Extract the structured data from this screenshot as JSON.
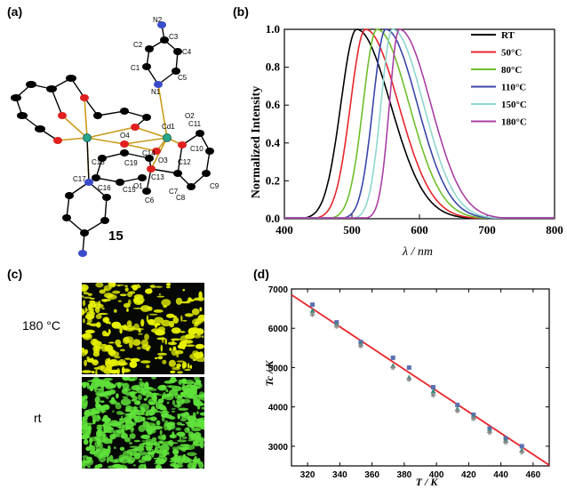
{
  "panels": {
    "a": "(a)",
    "b": "(b)",
    "c": "(c)",
    "d": "(d)"
  },
  "structure": {
    "compound_number": "15",
    "atom_labels": [
      "N2",
      "C3",
      "C2",
      "C4",
      "C1",
      "N1",
      "C5",
      "C11",
      "O2",
      "Cd1",
      "O4",
      "C10",
      "C14",
      "O3",
      "C18",
      "C19",
      "C12",
      "C13",
      "C17",
      "C16",
      "C15",
      "C9",
      "C7",
      "O1",
      "C6",
      "C8"
    ]
  },
  "micrographs": {
    "top_label": "180 °C",
    "bottom_label": "rt",
    "top_color": "#e8f200",
    "bottom_color": "#5fe23a"
  },
  "chart_data": [
    {
      "type": "line",
      "panel": "b",
      "xlabel": "λ / nm",
      "ylabel": "Normalized Intensity",
      "xlim": [
        400,
        800
      ],
      "ylim": [
        0.0,
        1.0
      ],
      "xticks": [
        "400",
        "500",
        "600",
        "700",
        "800"
      ],
      "yticks": [
        "0.0",
        "0.2",
        "0.4",
        "0.6",
        "0.8",
        "1.0"
      ],
      "legend_position": "top-right",
      "series": [
        {
          "name": "RT",
          "color": "#000000",
          "peak": 507,
          "fwhm_left": 55,
          "fwhm_right": 118
        },
        {
          "name": "50°C",
          "color": "#e8252a",
          "peak": 520,
          "fwhm_left": 52,
          "fwhm_right": 115
        },
        {
          "name": "80°C",
          "color": "#6fbf2a",
          "peak": 537,
          "fwhm_left": 48,
          "fwhm_right": 112
        },
        {
          "name": "110°C",
          "color": "#3b45a8",
          "peak": 550,
          "fwhm_left": 44,
          "fwhm_right": 110
        },
        {
          "name": "150°C",
          "color": "#8fd7cf",
          "peak": 560,
          "fwhm_left": 40,
          "fwhm_right": 108
        },
        {
          "name": "180°C",
          "color": "#a93fa4",
          "peak": 570,
          "fwhm_left": 34,
          "fwhm_right": 110
        }
      ]
    },
    {
      "type": "scatter",
      "panel": "d",
      "xlabel": "T / K",
      "ylabel": "Tc / K",
      "xlim": [
        310,
        470
      ],
      "ylim": [
        2500,
        7000
      ],
      "xticks": [
        "320",
        "340",
        "360",
        "380",
        "400",
        "420",
        "440",
        "460"
      ],
      "yticks": [
        "3000",
        "4000",
        "5000",
        "6000",
        "7000"
      ],
      "fit_line": {
        "color": "#e8252a",
        "x": [
          310,
          470
        ],
        "y": [
          6850,
          2520
        ]
      },
      "series": [
        {
          "name": "",
          "marker": "square",
          "color": "#5a6fb0",
          "x": [
            323,
            338,
            353,
            373,
            383,
            398,
            413,
            423,
            433,
            443,
            453
          ],
          "y": [
            6600,
            6150,
            5650,
            5250,
            5000,
            4500,
            4050,
            3800,
            3450,
            3200,
            3000
          ]
        },
        {
          "name": "",
          "marker": "triangle",
          "color": "#2f8a7a",
          "x": [
            323,
            338,
            353,
            373,
            383,
            398,
            413,
            423,
            433,
            443,
            453
          ],
          "y": [
            6450,
            6100,
            5600,
            5050,
            4750,
            4400,
            3950,
            3750,
            3400,
            3150,
            2900
          ]
        },
        {
          "name": "",
          "marker": "star",
          "color": "#8a8a8a",
          "x": [
            323,
            338,
            353,
            373,
            383,
            398,
            413,
            423,
            433,
            443,
            453
          ],
          "y": [
            6350,
            6050,
            5550,
            5000,
            4700,
            4300,
            3900,
            3700,
            3350,
            3100,
            2850
          ]
        }
      ]
    }
  ]
}
